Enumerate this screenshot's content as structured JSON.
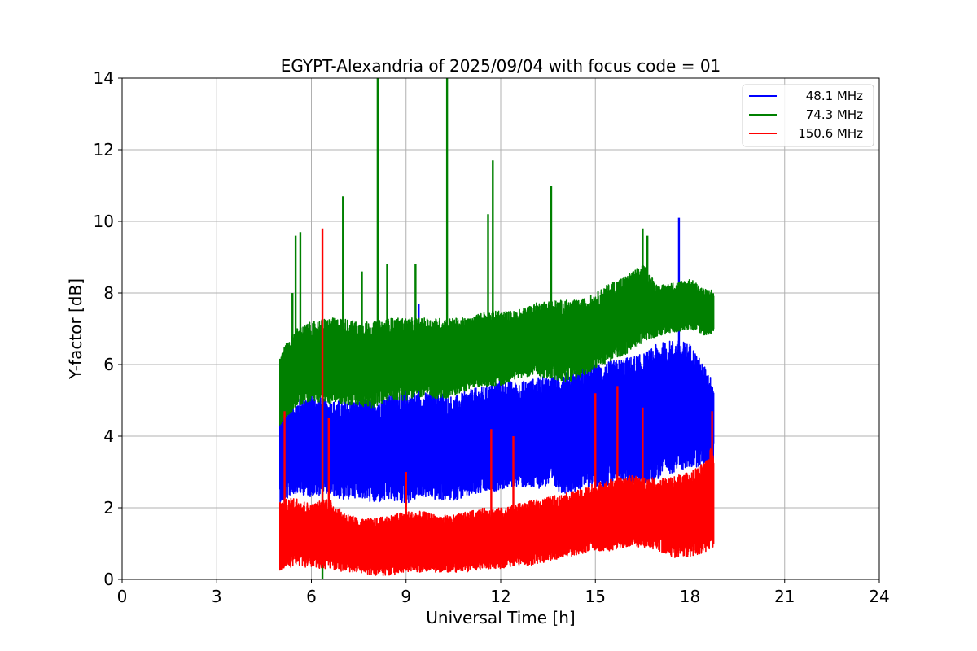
{
  "chart_data": {
    "type": "line",
    "title": "EGYPT-Alexandria of 2025/09/04 with focus code = 01",
    "xlabel": "Universal Time [h]",
    "ylabel": "Y-factor [dB]",
    "xlim": [
      0,
      24
    ],
    "ylim": [
      0,
      14
    ],
    "xticks": [
      0,
      3,
      6,
      9,
      12,
      15,
      18,
      21,
      24
    ],
    "yticks": [
      0,
      2,
      4,
      6,
      8,
      10,
      12,
      14
    ],
    "grid": true,
    "legend_position": "top-right",
    "series": [
      {
        "name": "48.1 MHz",
        "color": "#0000ff",
        "x": [
          5.0,
          5.5,
          6.0,
          6.5,
          7.0,
          7.5,
          8.0,
          8.5,
          9.0,
          9.5,
          10.0,
          10.5,
          11.0,
          11.5,
          12.0,
          12.5,
          13.0,
          13.5,
          14.0,
          14.5,
          15.0,
          15.5,
          16.0,
          16.5,
          17.0,
          17.5,
          18.0,
          18.5,
          18.75
        ],
        "low": [
          2.1,
          2.4,
          2.3,
          2.4,
          2.2,
          2.3,
          2.1,
          2.2,
          2.1,
          2.3,
          2.2,
          2.2,
          2.3,
          2.4,
          2.5,
          2.6,
          2.5,
          2.6,
          2.4,
          2.5,
          2.6,
          2.6,
          2.7,
          2.6,
          2.8,
          3.0,
          3.1,
          3.2,
          3.3
        ],
        "high": [
          4.8,
          5.0,
          5.2,
          5.0,
          5.0,
          5.0,
          5.1,
          5.2,
          5.3,
          5.2,
          5.3,
          5.1,
          5.3,
          5.4,
          5.6,
          5.5,
          5.6,
          5.7,
          5.8,
          5.9,
          6.0,
          6.1,
          6.2,
          6.3,
          6.6,
          6.7,
          6.6,
          5.9,
          5.5
        ],
        "spikes": [
          {
            "x": 9.4,
            "y": 7.7
          },
          {
            "x": 17.65,
            "y": 10.1
          }
        ]
      },
      {
        "name": "74.3 MHz",
        "color": "#008000",
        "x": [
          5.0,
          5.5,
          6.0,
          6.5,
          7.0,
          7.5,
          8.0,
          8.5,
          9.0,
          9.5,
          10.0,
          10.5,
          11.0,
          11.5,
          12.0,
          12.5,
          13.0,
          13.5,
          14.0,
          14.5,
          15.0,
          15.5,
          16.0,
          16.5,
          17.0,
          17.5,
          18.0,
          18.5,
          18.75
        ],
        "low": [
          4.3,
          4.8,
          5.0,
          4.9,
          4.9,
          4.8,
          4.8,
          5.0,
          5.0,
          5.1,
          5.0,
          5.1,
          5.3,
          5.4,
          5.4,
          5.6,
          5.7,
          5.6,
          5.5,
          5.6,
          5.9,
          6.1,
          6.3,
          6.6,
          6.8,
          6.9,
          7.0,
          6.8,
          6.9
        ],
        "high": [
          6.3,
          7.0,
          7.2,
          7.3,
          7.3,
          7.2,
          7.2,
          7.3,
          7.3,
          7.3,
          7.3,
          7.3,
          7.3,
          7.5,
          7.5,
          7.5,
          7.7,
          7.8,
          7.8,
          7.8,
          8.0,
          8.3,
          8.5,
          8.8,
          8.2,
          8.3,
          8.4,
          8.1,
          8.1
        ],
        "spikes": [
          {
            "x": 5.4,
            "y": 8.0
          },
          {
            "x": 5.5,
            "y": 9.6
          },
          {
            "x": 5.65,
            "y": 9.7
          },
          {
            "x": 6.35,
            "y": 0.0
          },
          {
            "x": 7.0,
            "y": 10.7
          },
          {
            "x": 7.6,
            "y": 8.6
          },
          {
            "x": 8.1,
            "y": 14.0
          },
          {
            "x": 8.4,
            "y": 8.8
          },
          {
            "x": 9.3,
            "y": 8.8
          },
          {
            "x": 10.3,
            "y": 14.0
          },
          {
            "x": 11.6,
            "y": 10.2
          },
          {
            "x": 11.75,
            "y": 11.7
          },
          {
            "x": 13.6,
            "y": 11.0
          },
          {
            "x": 16.5,
            "y": 9.8
          },
          {
            "x": 16.65,
            "y": 9.6
          }
        ]
      },
      {
        "name": "150.6 MHz",
        "color": "#ff0000",
        "x": [
          5.0,
          5.5,
          6.0,
          6.5,
          7.0,
          7.5,
          8.0,
          8.5,
          9.0,
          9.5,
          10.0,
          10.5,
          11.0,
          11.5,
          12.0,
          12.5,
          13.0,
          13.5,
          14.0,
          14.5,
          15.0,
          15.5,
          16.0,
          16.5,
          17.0,
          17.5,
          18.0,
          18.5,
          18.75
        ],
        "low": [
          0.2,
          0.4,
          0.3,
          0.3,
          0.2,
          0.2,
          0.1,
          0.1,
          0.2,
          0.2,
          0.2,
          0.2,
          0.2,
          0.3,
          0.3,
          0.4,
          0.4,
          0.5,
          0.6,
          0.7,
          0.8,
          0.8,
          0.9,
          0.9,
          0.8,
          0.6,
          0.6,
          0.7,
          0.9
        ],
        "high": [
          2.2,
          2.3,
          2.1,
          2.3,
          1.9,
          1.7,
          1.7,
          1.8,
          1.9,
          1.9,
          1.8,
          1.8,
          1.9,
          2.0,
          2.0,
          2.1,
          2.2,
          2.3,
          2.4,
          2.5,
          2.7,
          2.8,
          2.9,
          2.9,
          2.8,
          2.9,
          3.0,
          3.3,
          3.9
        ],
        "spikes": [
          {
            "x": 5.15,
            "y": 4.7
          },
          {
            "x": 6.35,
            "y": 9.8
          },
          {
            "x": 6.55,
            "y": 4.5
          },
          {
            "x": 9.0,
            "y": 3.0
          },
          {
            "x": 11.7,
            "y": 4.2
          },
          {
            "x": 12.4,
            "y": 4.0
          },
          {
            "x": 15.0,
            "y": 5.2
          },
          {
            "x": 15.7,
            "y": 5.4
          },
          {
            "x": 16.5,
            "y": 4.8
          },
          {
            "x": 18.7,
            "y": 4.7
          }
        ]
      }
    ]
  }
}
